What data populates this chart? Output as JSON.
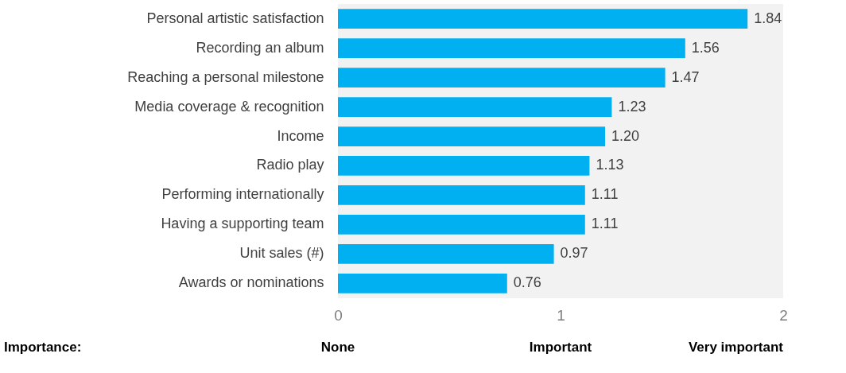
{
  "chart_data": {
    "type": "bar",
    "orientation": "horizontal",
    "categories": [
      "Personal artistic satisfaction",
      "Recording an album",
      "Reaching a personal milestone",
      "Media coverage & recognition",
      "Income",
      "Radio play",
      "Performing internationally",
      "Having a supporting team",
      "Unit sales (#)",
      "Awards or nominations"
    ],
    "values": [
      1.84,
      1.56,
      1.47,
      1.23,
      1.2,
      1.13,
      1.11,
      1.11,
      0.97,
      0.76
    ],
    "value_labels": [
      "1.84",
      "1.56",
      "1.47",
      "1.23",
      "1.20",
      "1.13",
      "1.11",
      "1.11",
      "0.97",
      "0.76"
    ],
    "color": "#00b0f0",
    "xlim": [
      0,
      2
    ],
    "xticks": [
      0,
      1,
      2
    ],
    "grid": false,
    "annotations": [
      "Importance:",
      "None",
      "Important",
      "Very important"
    ]
  }
}
